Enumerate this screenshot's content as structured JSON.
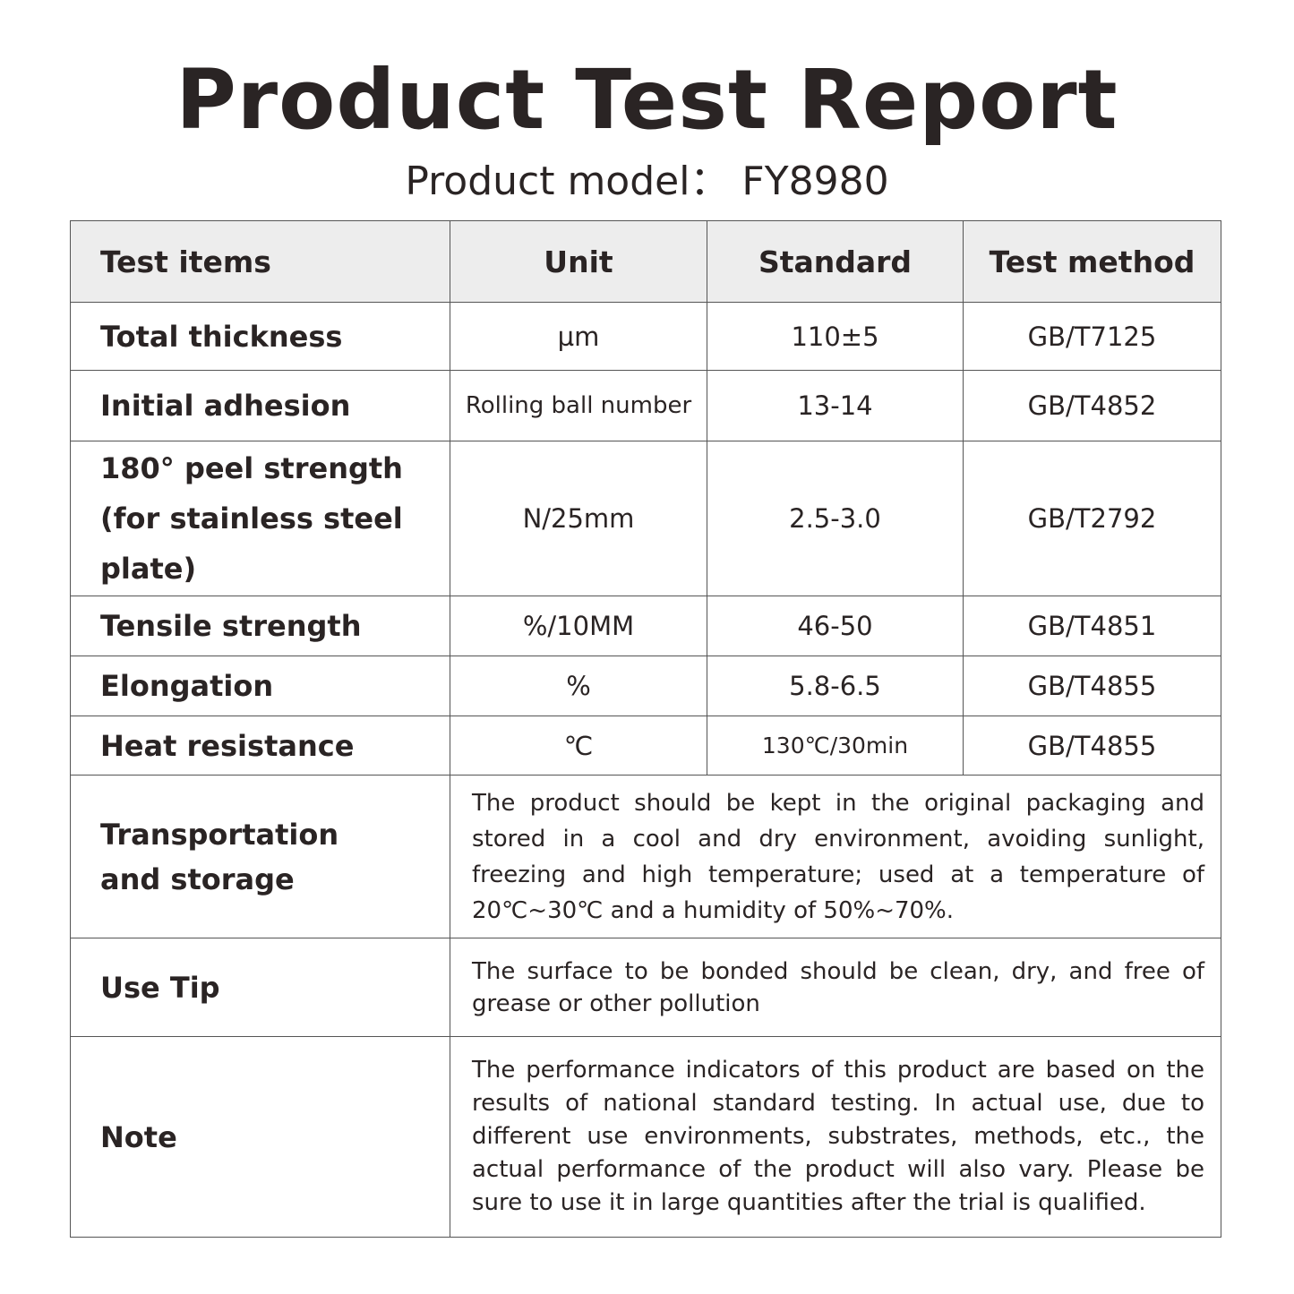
{
  "title": "Product Test Report",
  "subtitle": "Product model： FY8980",
  "table": {
    "headers": [
      "Test items",
      "Unit",
      "Standard",
      "Test method"
    ],
    "rows": [
      {
        "item": "Total thickness",
        "unit": "µm",
        "standard": "110±5",
        "method": "GB/T7125"
      },
      {
        "item": "Initial adhesion",
        "unit": "Rolling ball number",
        "standard": "13-14",
        "method": "GB/T4852"
      },
      {
        "item": "180° peel strength (for stainless steel plate)",
        "unit": "N/25mm",
        "standard": "2.5-3.0",
        "method": "GB/T2792"
      },
      {
        "item": "Tensile strength",
        "unit": "%/10MM",
        "standard": "46-50",
        "method": "GB/T4851"
      },
      {
        "item": "Elongation",
        "unit": "%",
        "standard": "5.8-6.5",
        "method": "GB/T4855"
      },
      {
        "item": "Heat resistance",
        "unit": "℃",
        "standard": "130℃/30min",
        "method": "GB/T4855"
      }
    ],
    "notes": [
      {
        "item": "Transportation and storage",
        "text": "The product should be kept in the original packaging and stored in a cool and dry environment, avoiding sunlight, freezing and high temperature; used at a temperature of 20℃~30℃ and a humidity of 50%~70%."
      },
      {
        "item": "Use Tip",
        "text": "The surface to be bonded should be clean, dry, and free of grease or other pollution"
      },
      {
        "item": "Note",
        "text": "The performance indicators of this product are based on the results of national standard testing. In actual use, due to different use environments, substrates, methods, etc., the actual performance of the product will also vary. Please be sure to use it in large quantities after the trial is qualified."
      }
    ]
  }
}
